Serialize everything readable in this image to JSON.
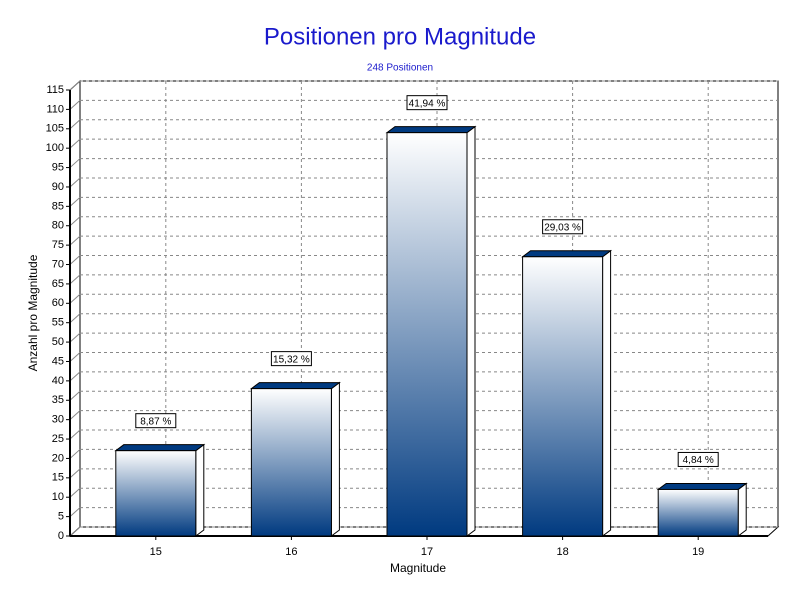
{
  "chart_data": {
    "type": "bar3d",
    "title": "Positionen pro Magnitude",
    "subtitle": "248 Positionen",
    "x_label": "Magnitude",
    "y_label": "Anzahl pro Magnitude",
    "categories": [
      "15",
      "16",
      "17",
      "18",
      "19"
    ],
    "values": [
      22,
      38,
      104,
      72,
      12
    ],
    "percent_labels": [
      "8,87 %",
      "15,32 %",
      "41,94 %",
      "29,03 %",
      "4,84 %"
    ],
    "color": "#003a80",
    "ylim": [
      0,
      115
    ],
    "yticks": [
      0,
      5,
      10,
      15,
      20,
      25,
      30,
      35,
      40,
      45,
      50,
      55,
      60,
      65,
      70,
      75,
      80,
      85,
      90,
      95,
      100,
      105,
      110,
      115
    ],
    "grid": true
  }
}
